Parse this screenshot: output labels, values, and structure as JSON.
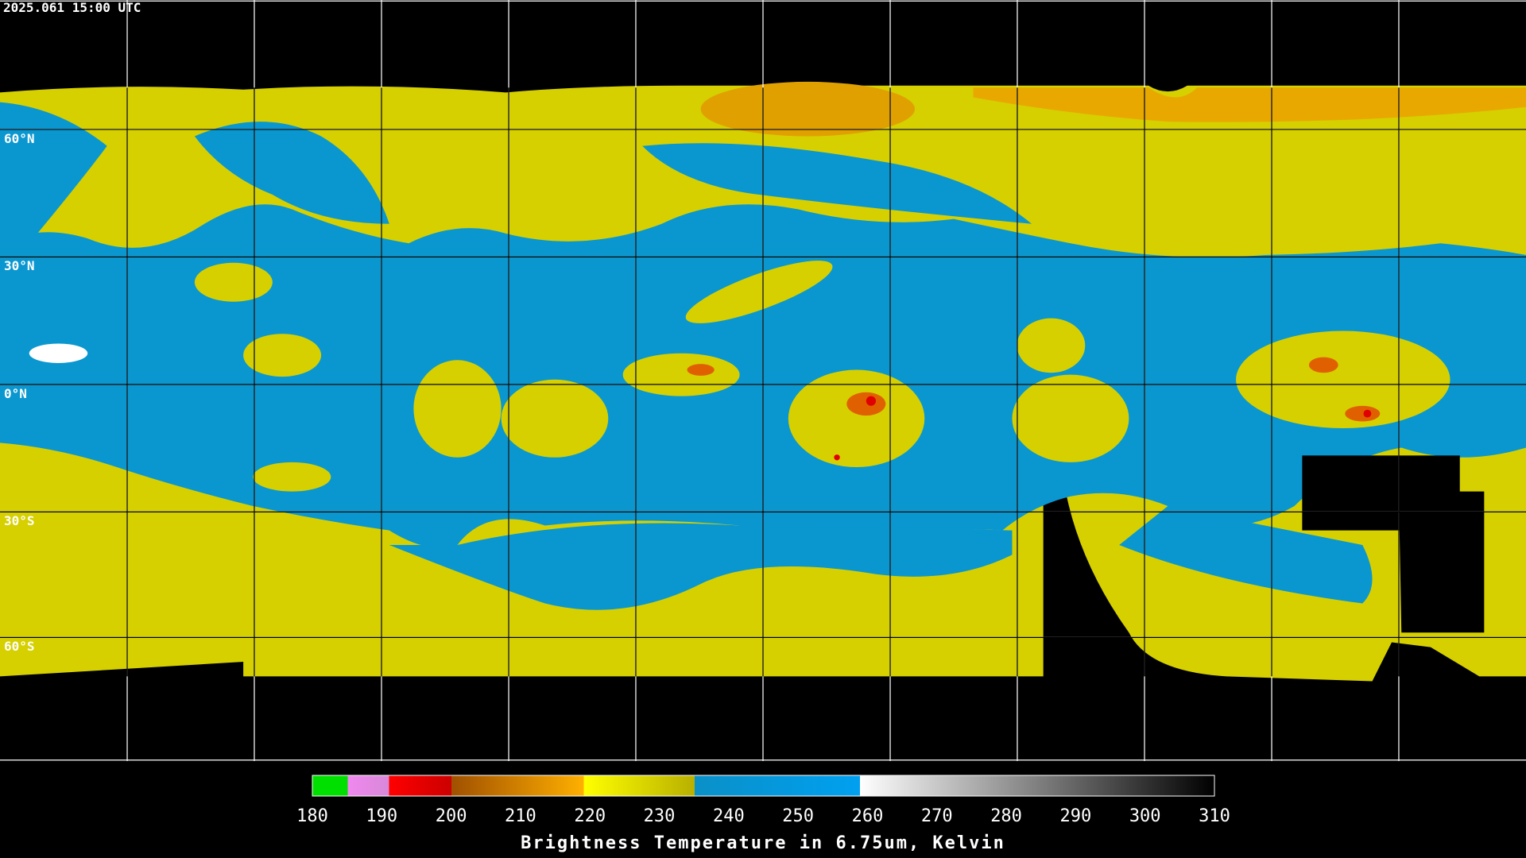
{
  "header": {
    "timestamp": "2025.061 15:00 UTC"
  },
  "map": {
    "lat_labels": [
      "60°N",
      "30°N",
      "0°N",
      "30°S",
      "60°S"
    ]
  },
  "colorbar": {
    "ticks": [
      180,
      190,
      200,
      210,
      220,
      230,
      240,
      250,
      260,
      270,
      280,
      290,
      300,
      310
    ],
    "title": "Brightness Temperature in 6.75um, Kelvin"
  }
}
